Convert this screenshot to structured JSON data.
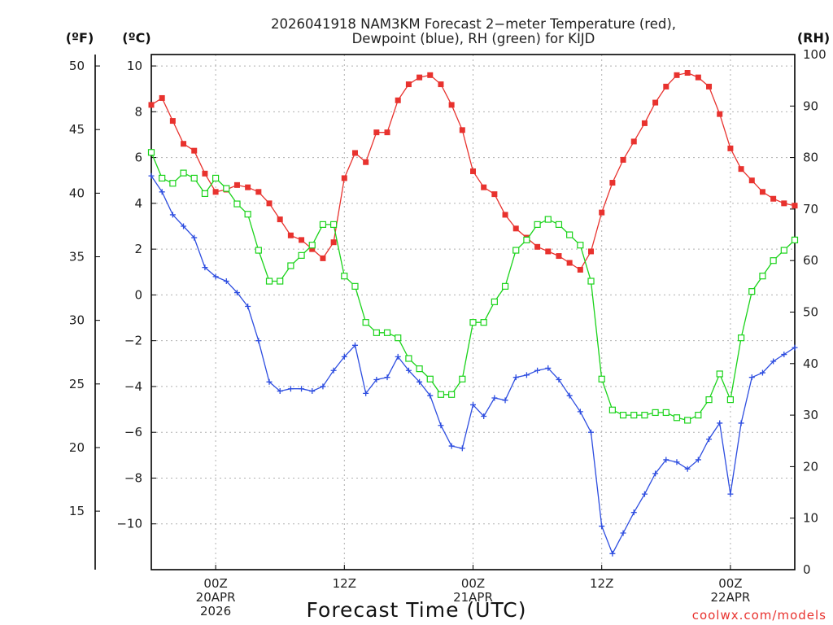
{
  "chart_data": {
    "type": "line",
    "title_lines": [
      "2026041918 NAM3KM Forecast 2−meter Temperature (red),",
      "Dewpoint (blue), RH (green) for KIJD"
    ],
    "xlabel": "Forecast Time (UTC)",
    "credit": "coolwx.com/models",
    "credit_color": "#e8322e",
    "axis_units": {
      "fahrenheit": "(ºF)",
      "celsius": "(ºC)",
      "rh": "(RH)"
    },
    "celsius_axis": {
      "range": [
        -12.0,
        10.5
      ],
      "ticks": [
        "10",
        "8",
        "6",
        "4",
        "2",
        "0",
        "−2",
        "−4",
        "−6",
        "−8",
        "−10"
      ],
      "tick_values": [
        10,
        8,
        6,
        4,
        2,
        0,
        -2,
        -4,
        -6,
        -8,
        -10
      ]
    },
    "fahrenheit_axis": {
      "ticks": [
        "50",
        "45",
        "40",
        "35",
        "30",
        "25",
        "20",
        "15"
      ],
      "tick_values": [
        50,
        45,
        40,
        35,
        30,
        25,
        20,
        15
      ]
    },
    "rh_axis": {
      "range": [
        0,
        100
      ],
      "ticks": [
        "100",
        "90",
        "80",
        "70",
        "60",
        "50",
        "40",
        "30",
        "20",
        "10",
        "0"
      ],
      "tick_values": [
        100,
        90,
        80,
        70,
        60,
        50,
        40,
        30,
        20,
        10,
        0
      ]
    },
    "x_axis": {
      "unit": "forecast hour from 2026041918",
      "range": [
        0,
        60
      ],
      "ticks": [
        {
          "hour": 6,
          "lines": [
            "00Z",
            "20APR",
            "2026"
          ]
        },
        {
          "hour": 18,
          "lines": [
            "12Z"
          ]
        },
        {
          "hour": 30,
          "lines": [
            "00Z",
            "21APR"
          ]
        },
        {
          "hour": 42,
          "lines": [
            "12Z"
          ]
        },
        {
          "hour": 54,
          "lines": [
            "00Z",
            "22APR"
          ]
        }
      ]
    },
    "series": [
      {
        "name": "Temperature",
        "units": "°C",
        "axis": "celsius",
        "color": "#e8322e",
        "marker": "filled-square",
        "x": [
          0,
          1,
          2,
          3,
          4,
          5,
          6,
          7,
          8,
          9,
          10,
          11,
          12,
          13,
          14,
          15,
          16,
          17,
          18,
          19,
          20,
          21,
          22,
          23,
          24,
          25,
          26,
          27,
          28,
          29,
          30,
          31,
          32,
          33,
          34,
          35,
          36,
          37,
          38,
          39,
          40,
          41,
          42,
          43,
          44,
          45,
          46,
          47,
          48,
          49,
          50,
          51,
          52,
          53,
          54,
          55,
          56,
          57,
          58,
          59,
          60
        ],
        "values": [
          8.3,
          8.6,
          7.6,
          6.6,
          6.3,
          5.3,
          4.5,
          4.6,
          4.8,
          4.7,
          4.5,
          4.0,
          3.3,
          2.6,
          2.4,
          2.0,
          1.6,
          2.3,
          5.1,
          6.2,
          5.8,
          7.1,
          7.1,
          8.5,
          9.2,
          9.5,
          9.6,
          9.2,
          8.3,
          7.2,
          5.4,
          4.7,
          4.4,
          3.5,
          2.9,
          2.5,
          2.1,
          1.9,
          1.7,
          1.4,
          1.1,
          1.9,
          3.6,
          4.9,
          5.9,
          6.7,
          7.5,
          8.4,
          9.1,
          9.6,
          9.7,
          9.5,
          9.1,
          7.9,
          6.4,
          5.5,
          5.0,
          4.5,
          4.2,
          4.0,
          3.9
        ]
      },
      {
        "name": "Dewpoint",
        "units": "°C",
        "axis": "celsius",
        "color": "#2d4de0",
        "marker": "plus",
        "x": [
          0,
          1,
          2,
          3,
          4,
          5,
          6,
          7,
          8,
          9,
          10,
          11,
          12,
          13,
          14,
          15,
          16,
          17,
          18,
          19,
          20,
          21,
          22,
          23,
          24,
          25,
          26,
          27,
          28,
          29,
          30,
          31,
          32,
          33,
          34,
          35,
          36,
          37,
          38,
          39,
          40,
          41,
          42,
          43,
          44,
          45,
          46,
          47,
          48,
          49,
          50,
          51,
          52,
          53,
          54,
          55,
          56,
          57,
          58,
          59,
          60
        ],
        "values": [
          5.2,
          4.5,
          3.5,
          3.0,
          2.5,
          1.2,
          0.8,
          0.6,
          0.1,
          -0.5,
          -2.0,
          -3.8,
          -4.2,
          -4.1,
          -4.1,
          -4.2,
          -4.0,
          -3.3,
          -2.7,
          -2.2,
          -4.3,
          -3.7,
          -3.6,
          -2.7,
          -3.3,
          -3.8,
          -4.4,
          -5.7,
          -6.6,
          -6.7,
          -4.8,
          -5.3,
          -4.5,
          -4.6,
          -3.6,
          -3.5,
          -3.3,
          -3.2,
          -3.7,
          -4.4,
          -5.1,
          -6.0,
          -10.1,
          -11.3,
          -10.4,
          -9.5,
          -8.7,
          -7.8,
          -7.2,
          -7.3,
          -7.6,
          -7.2,
          -6.3,
          -5.6,
          -8.7,
          -5.6,
          -3.6,
          -3.4,
          -2.9,
          -2.6,
          -2.3
        ]
      },
      {
        "name": "RH",
        "units": "%",
        "axis": "rh",
        "color": "#1ad31a",
        "marker": "open-square",
        "x": [
          0,
          1,
          2,
          3,
          4,
          5,
          6,
          7,
          8,
          9,
          10,
          11,
          12,
          13,
          14,
          15,
          16,
          17,
          18,
          19,
          20,
          21,
          22,
          23,
          24,
          25,
          26,
          27,
          28,
          29,
          30,
          31,
          32,
          33,
          34,
          35,
          36,
          37,
          38,
          39,
          40,
          41,
          42,
          43,
          44,
          45,
          46,
          47,
          48,
          49,
          50,
          51,
          52,
          53,
          54,
          55,
          56,
          57,
          58,
          59,
          60
        ],
        "values": [
          81,
          76,
          75,
          77,
          76,
          73,
          76,
          74,
          71,
          69,
          62,
          56,
          56,
          59,
          61,
          63,
          67,
          67,
          57,
          55,
          48,
          46,
          46,
          45,
          41,
          39,
          37,
          34,
          34,
          37,
          48,
          48,
          52,
          55,
          62,
          64,
          67,
          68,
          67,
          65,
          63,
          56,
          37,
          31,
          30,
          30,
          30,
          30.5,
          30.5,
          29.5,
          29,
          30,
          33,
          38,
          33,
          45,
          54,
          57,
          60,
          62,
          64
        ]
      }
    ]
  }
}
